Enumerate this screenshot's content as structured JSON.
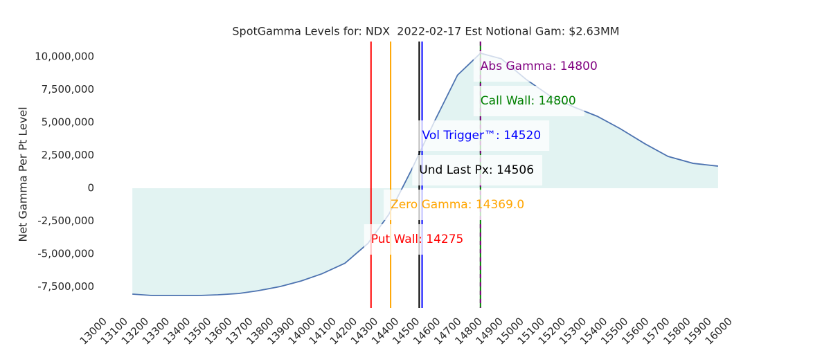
{
  "chart_data": {
    "type": "line",
    "title": "SpotGamma Levels for: NDX  2022-02-17 Est Notional Gam: $2.63MM",
    "y_label": "Net Gamma Per Pt Level",
    "x": [
      13130,
      13230,
      13340,
      13440,
      13540,
      13640,
      13730,
      13840,
      13940,
      14040,
      14150,
      14260,
      14360,
      14470,
      14580,
      14690,
      14800,
      14900,
      15020,
      15140,
      15250,
      15360,
      15470,
      15590,
      15700,
      15820,
      15940
    ],
    "series": [
      {
        "color": "#4c72b0",
        "fill": "#e2f3f2",
        "values": [
          -8050000,
          -8160000,
          -8160000,
          -8160000,
          -8100000,
          -8000000,
          -7800000,
          -7470000,
          -7050000,
          -6500000,
          -5700000,
          -4200000,
          -2000000,
          1420000,
          5100000,
          8600000,
          10260000,
          9840000,
          8260000,
          6950000,
          6160000,
          5470000,
          4530000,
          3370000,
          2420000,
          1890000,
          1680000
        ]
      }
    ],
    "levels": [
      {
        "label": "Put Wall: 14275",
        "value": 14275,
        "color": "#ff0000"
      },
      {
        "label": "Zero Gamma: 14369.0",
        "value": 14369,
        "color": "#ffa500"
      },
      {
        "label": "Und Last Px: 14506",
        "value": 14506,
        "color": "#000000"
      },
      {
        "label": "Vol Trigger™: 14520",
        "value": 14520,
        "color": "#0000ff"
      },
      {
        "label": "Call Wall: 14800",
        "value": 14800,
        "color": "#008000"
      },
      {
        "label": "Abs Gamma: 14800",
        "value": 14800,
        "color": "#800080"
      }
    ],
    "xlim": [
      13000,
      16000
    ],
    "xticks": [
      13000,
      13100,
      13200,
      13300,
      13400,
      13500,
      13600,
      13700,
      13800,
      13900,
      14000,
      14100,
      14200,
      14300,
      14400,
      14500,
      14600,
      14700,
      14800,
      14900,
      15000,
      15100,
      15200,
      15300,
      15400,
      15500,
      15600,
      15700,
      15800,
      15900,
      16000
    ],
    "ylim": [
      -9100000,
      11150000
    ],
    "yticks": [
      {
        "value": -7500000,
        "label": "-7,500,000"
      },
      {
        "value": -5000000,
        "label": "-5,000,000"
      },
      {
        "value": -2500000,
        "label": "-2,500,000"
      },
      0,
      {
        "value": 2500000,
        "label": "2,500,000"
      },
      {
        "value": 5000000,
        "label": "5,000,000"
      },
      {
        "value": 7500000,
        "label": "7,500,000"
      },
      {
        "value": 10000000,
        "label": "10,000,000"
      }
    ],
    "grid": false
  }
}
